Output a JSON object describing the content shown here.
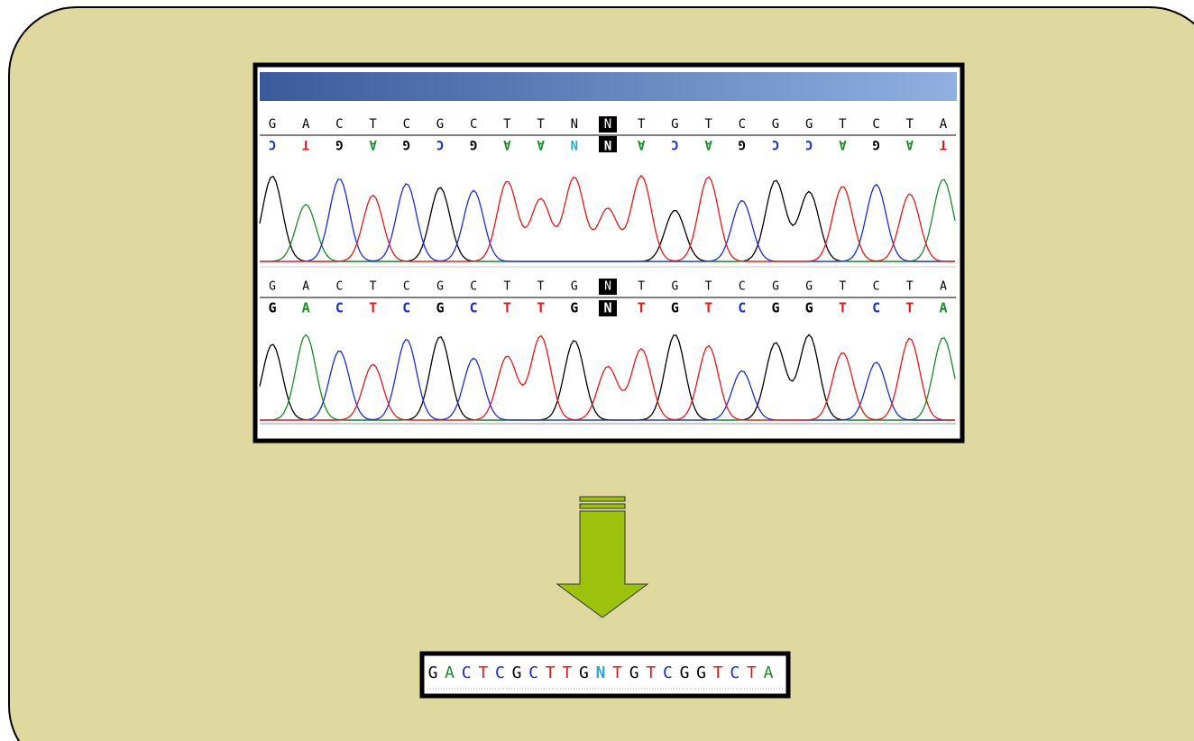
{
  "panel1": {
    "called": [
      "G",
      "A",
      "C",
      "T",
      "C",
      "G",
      "C",
      "T",
      "T",
      "N",
      "N",
      "T",
      "G",
      "T",
      "C",
      "G",
      "G",
      "T",
      "C",
      "T",
      "A"
    ],
    "complement": [
      "C",
      "T",
      "G",
      "A",
      "G",
      "C",
      "G",
      "A",
      "A",
      "N",
      "N",
      "A",
      "C",
      "A",
      "G",
      "C",
      "C",
      "A",
      "G",
      "A",
      "T"
    ]
  },
  "panel2": {
    "reference": [
      "G",
      "A",
      "C",
      "T",
      "C",
      "G",
      "C",
      "T",
      "T",
      "G",
      "N",
      "T",
      "G",
      "T",
      "C",
      "G",
      "G",
      "T",
      "C",
      "T",
      "A"
    ],
    "called": [
      "G",
      "A",
      "C",
      "T",
      "C",
      "G",
      "C",
      "T",
      "T",
      "G",
      "N",
      "T",
      "G",
      "T",
      "C",
      "G",
      "G",
      "T",
      "C",
      "T",
      "A"
    ]
  },
  "output": [
    "G",
    "A",
    "C",
    "T",
    "C",
    "G",
    "C",
    "T",
    "T",
    "G",
    "N",
    "T",
    "G",
    "T",
    "C",
    "G",
    "G",
    "T",
    "C",
    "T",
    "A"
  ]
}
